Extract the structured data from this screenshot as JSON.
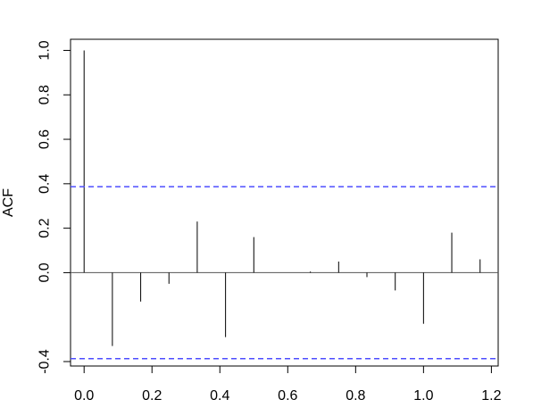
{
  "chart_data": {
    "type": "bar",
    "ylabel": "ACF",
    "xlim": [
      -0.04,
      1.22
    ],
    "ylim": [
      -0.42,
      1.05
    ],
    "x_ticks": [
      "0.0",
      "0.2",
      "0.4",
      "0.6",
      "0.8",
      "1.0",
      "1.2"
    ],
    "y_ticks": [
      "-0.4",
      "0.0",
      "0.2",
      "0.4",
      "0.6",
      "0.8",
      "1.0"
    ],
    "x": [
      0.0,
      0.0833,
      0.1667,
      0.25,
      0.3333,
      0.4167,
      0.5,
      0.5833,
      0.6667,
      0.75,
      0.8333,
      0.9167,
      1.0,
      1.0833,
      1.1667
    ],
    "values": [
      1.0,
      -0.33,
      -0.13,
      -0.05,
      0.23,
      -0.29,
      0.16,
      0.0,
      0.005,
      0.05,
      -0.02,
      -0.08,
      -0.23,
      0.18,
      0.06
    ],
    "confidence_bounds": [
      0.387,
      -0.387
    ],
    "colors": {
      "bars": "#000000",
      "bounds": "#4d4dff",
      "zero_line": "#555555"
    },
    "grid": false
  }
}
